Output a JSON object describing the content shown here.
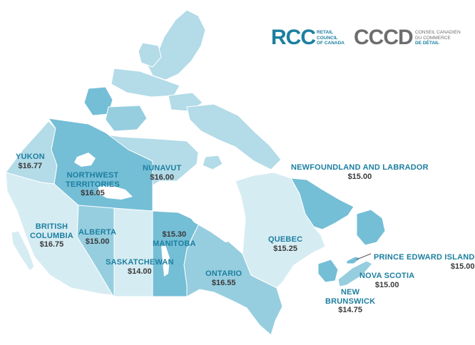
{
  "colors": {
    "light": "#d6ecf3",
    "mid": "#b3dbe8",
    "medium": "#96cedf",
    "dark": "#74bed6",
    "accent": "#1c7fa0",
    "value_text": "#3a3a3a",
    "grey": "#6d6e70"
  },
  "logos": {
    "rcc": {
      "mark": "RCC",
      "line1": "RETAIL",
      "line2": "COUNCIL",
      "line3": "OF CANADA"
    },
    "cccd": {
      "mark": "CCCD",
      "line1": "CONSEIL CANADIEN",
      "line2": "DU COMMERCE",
      "line3": "DE DÉTAIL"
    }
  },
  "provinces": {
    "yukon": {
      "name": "YUKON",
      "wage": "$16.77"
    },
    "nwt": {
      "name_line1": "NORTHWEST",
      "name_line2": "TERRITORIES",
      "wage": "$16.05"
    },
    "nunavut": {
      "name": "NUNAVUT",
      "wage": "$16.00"
    },
    "bc": {
      "name_line1": "BRITISH",
      "name_line2": "COLUMBIA",
      "wage": "$16.75"
    },
    "alberta": {
      "name": "ALBERTA",
      "wage": "$15.00"
    },
    "saskatchewan": {
      "name": "SASKATCHEWAN",
      "wage": "$14.00"
    },
    "manitoba": {
      "name": "MANITOBA",
      "wage": "$15.30"
    },
    "ontario": {
      "name": "ONTARIO",
      "wage": "$16.55"
    },
    "quebec": {
      "name": "QUEBEC",
      "wage": "$15.25"
    },
    "nl": {
      "name": "NEWFOUNDLAND AND LABRADOR",
      "wage": "$15.00"
    },
    "pei": {
      "name": "PRINCE EDWARD ISLAND",
      "wage": "$15.00"
    },
    "ns": {
      "name": "NOVA SCOTIA",
      "wage": "$15.00"
    },
    "nb": {
      "name_line1": "NEW",
      "name_line2": "BRUNSWICK",
      "wage": "$14.75"
    }
  }
}
